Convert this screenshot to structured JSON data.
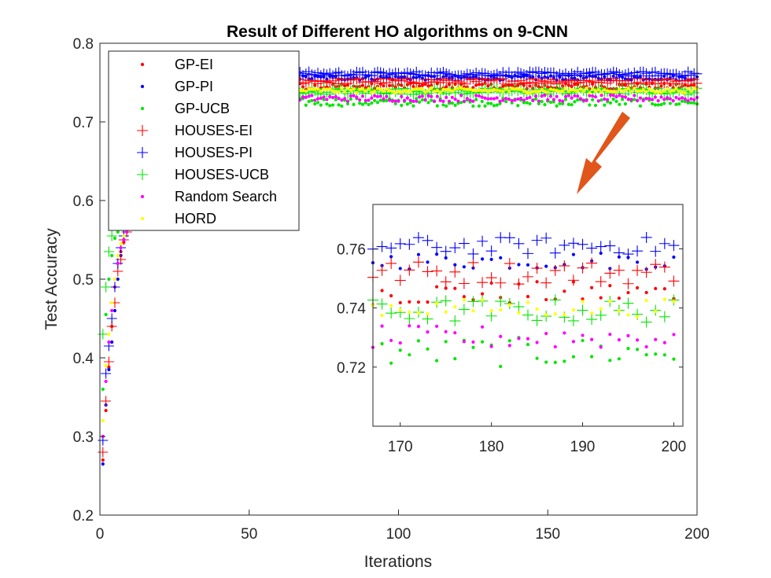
{
  "chart_data": [
    {
      "type": "scatter",
      "title": "Result of Different HO algorithms on 9-CNN",
      "xlabel": "Iterations",
      "ylabel": "Test Accuracy",
      "xlim": [
        0,
        200
      ],
      "ylim": [
        0.2,
        0.8
      ],
      "xticks": [
        0,
        50,
        100,
        150,
        200
      ],
      "yticks": [
        0.2,
        0.3,
        0.4,
        0.5,
        0.6,
        0.7,
        0.8
      ],
      "grid": false,
      "legend_position": "top-left",
      "series": [
        {
          "name": "GP-EI",
          "color": "#ff0000",
          "marker": "dot",
          "start": [
            0.27,
            0.333,
            0.388,
            0.44,
            0.49,
            0.52,
            0.535,
            0.547,
            0.56
          ],
          "plateau": 0.745,
          "noise": 0.004
        },
        {
          "name": "GP-PI",
          "color": "#0000ff",
          "marker": "dot",
          "start": [
            0.265,
            0.34,
            0.385,
            0.42,
            0.46,
            0.5,
            0.53,
            0.55,
            0.565
          ],
          "plateau": 0.756,
          "noise": 0.003
        },
        {
          "name": "GP-UCB",
          "color": "#00e600",
          "marker": "dot",
          "start": [
            0.36,
            0.455,
            0.5,
            0.53,
            0.552,
            0.56,
            0.565,
            0.57,
            0.572
          ],
          "plateau": 0.725,
          "noise": 0.005
        },
        {
          "name": "HOUSES-EI",
          "color": "#ff0000",
          "marker": "plus",
          "start": [
            0.28,
            0.345,
            0.395,
            0.44,
            0.47,
            0.51,
            0.525,
            0.55,
            0.56
          ],
          "plateau": 0.752,
          "noise": 0.004
        },
        {
          "name": "HOUSES-PI",
          "color": "#0000ff",
          "marker": "plus",
          "start": [
            0.295,
            0.38,
            0.415,
            0.45,
            0.49,
            0.52,
            0.54,
            0.555,
            0.565
          ],
          "plateau": 0.761,
          "noise": 0.003
        },
        {
          "name": "HOUSES-UCB",
          "color": "#00e600",
          "marker": "plus",
          "start": [
            0.43,
            0.49,
            0.535,
            0.555,
            0.57,
            0.575,
            0.578,
            0.58,
            0.582
          ],
          "plateau": 0.739,
          "noise": 0.004
        },
        {
          "name": "Random Search",
          "color": "#ff00ff",
          "marker": "dot",
          "start": [
            0.3,
            0.37,
            0.42,
            0.46,
            0.5,
            0.52,
            0.54,
            0.55,
            0.56
          ],
          "plateau": 0.73,
          "noise": 0.004
        },
        {
          "name": "HORD",
          "color": "#ffff00",
          "marker": "dot",
          "start": [
            0.32,
            0.39,
            0.43,
            0.47,
            0.5,
            0.53,
            0.545,
            0.555,
            0.565
          ],
          "plateau": 0.74,
          "noise": 0.003
        }
      ]
    },
    {
      "type": "scatter",
      "title": "",
      "xlim": [
        167,
        201
      ],
      "ylim": [
        0.7,
        0.775
      ],
      "xticks": [
        170,
        180,
        190,
        200
      ],
      "yticks": [
        0.72,
        0.74,
        0.76
      ],
      "grid": false,
      "note_source": "zoom of iterations 167-200"
    }
  ],
  "arrow": {
    "color": "#e0561b"
  }
}
